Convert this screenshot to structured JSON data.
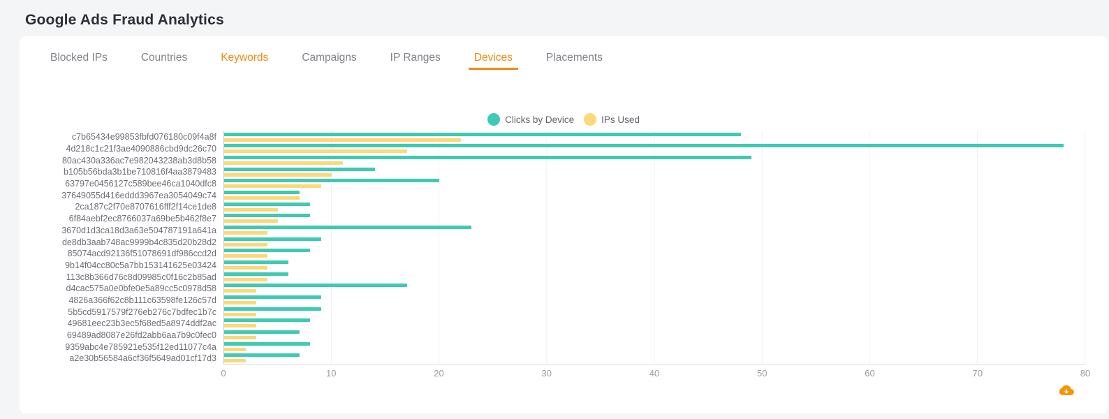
{
  "page": {
    "title": "Google Ads Fraud Analytics"
  },
  "tabs": [
    {
      "label": "Blocked IPs",
      "state": "default"
    },
    {
      "label": "Countries",
      "state": "default"
    },
    {
      "label": "Keywords",
      "state": "highlighted"
    },
    {
      "label": "Campaigns",
      "state": "default"
    },
    {
      "label": "IP Ranges",
      "state": "default"
    },
    {
      "label": "Devices",
      "state": "active"
    },
    {
      "label": "Placements",
      "state": "default"
    }
  ],
  "colors": {
    "accent_orange": "#f28a10",
    "clicks_teal": "#3ecab4",
    "ips_yellow": "#fbd979",
    "download_icon_orange": "#f59300"
  },
  "icons": {
    "download": "cloud-download-icon"
  },
  "chart_data": {
    "type": "bar",
    "orientation": "horizontal",
    "title": "",
    "xlabel": "",
    "ylabel": "",
    "xlim": [
      0,
      80
    ],
    "xticks": [
      0,
      10,
      20,
      30,
      40,
      50,
      60,
      70,
      80
    ],
    "grid": "vertical",
    "legend_position": "top-center",
    "categories": [
      "c7b65434e99853fbfd076180c09f4a8f",
      "4d218c1c21f3ae4090886cbd9dc26c70",
      "80ac430a336ac7e982043238ab3d8b58",
      "b105b56bda3b1be710816f4aa3879483",
      "63797e0456127c589bee46ca1040dfc8",
      "37649055d416eddd3967ea3054049c74",
      "2ca187c2f70e8707616fff2f14ce1de8",
      "6f84aebf2ec8766037a69be5b462f8e7",
      "3670d1d3ca18d3a63e504787191a641a",
      "de8db3aab748ac9999b4c835d20b28d2",
      "85074acd92136f51078691df986ccd2d",
      "9b14f04cc80c5a7bb153141625e03424",
      "113c8b366d76c8d09985c0f16c2b85ad",
      "d4cac575a0e0bfe0e5a89cc5c0978d58",
      "4826a366f62c8b111c63598fe126c57d",
      "5b5cd5917579f276eb276c7bdfec1b7c",
      "49681eec23b3ec5f68ed5a8974ddf2ac",
      "69489ad8087e26fd2abb6aa7b9c0fec0",
      "9359abc4e785921e535f12ed11077c4a",
      "a2e30b56584a6cf36f5649ad01cf17d3"
    ],
    "series": [
      {
        "name": "Clicks by Device",
        "color": "#3ecab4",
        "values": [
          48,
          78,
          49,
          14,
          20,
          7,
          8,
          8,
          23,
          9,
          8,
          6,
          6,
          17,
          9,
          9,
          8,
          7,
          8,
          7
        ]
      },
      {
        "name": "IPs Used",
        "color": "#fbd979",
        "values": [
          22,
          17,
          11,
          10,
          9,
          7,
          5,
          5,
          4,
          4,
          4,
          4,
          4,
          3,
          3,
          3,
          3,
          3,
          2,
          2
        ]
      }
    ]
  }
}
